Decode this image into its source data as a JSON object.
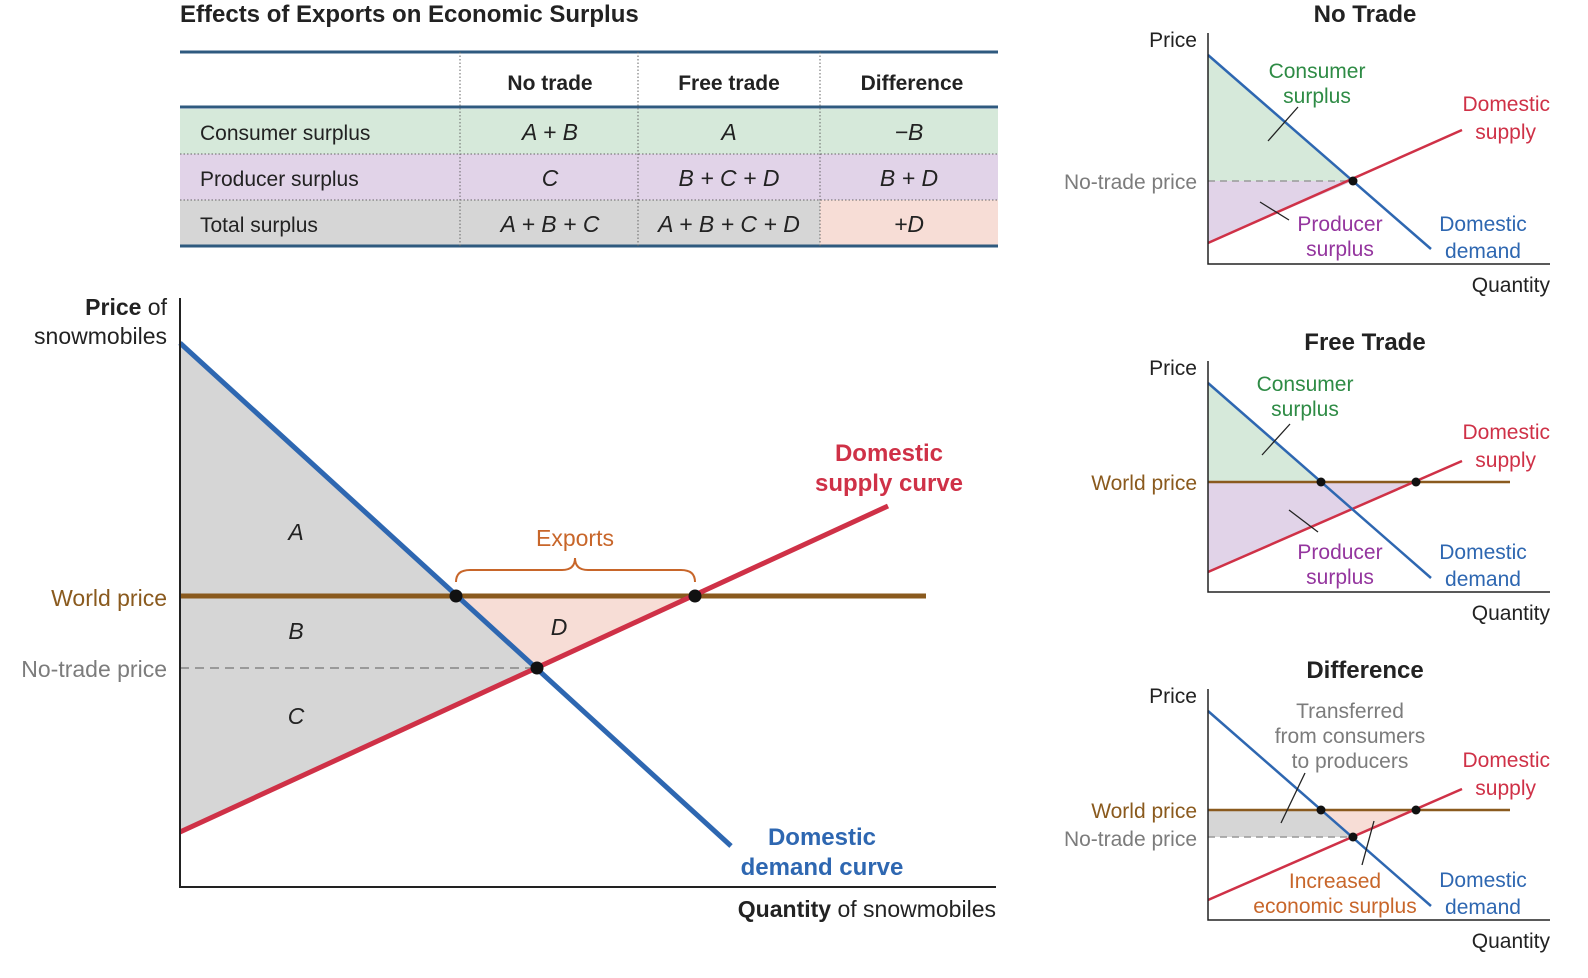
{
  "table": {
    "title": "Effects of Exports on Economic Surplus",
    "columns": [
      "",
      "No trade",
      "Free trade",
      "Difference"
    ],
    "rows": [
      {
        "label": "Consumer surplus",
        "cells": [
          "A + B",
          "A",
          "−B"
        ]
      },
      {
        "label": "Producer surplus",
        "cells": [
          "C",
          "B + C + D",
          "B + D"
        ]
      },
      {
        "label": "Total surplus",
        "cells": [
          "A + B + C",
          "A + B + C + D",
          "+D"
        ]
      }
    ]
  },
  "main": {
    "y_label_bold": "Price",
    "y_label_rest": " of",
    "y_label_line2": "snowmobiles",
    "x_label_bold": "Quantity",
    "x_label_rest": " of snowmobiles",
    "world_price": "World price",
    "no_trade_price": "No-trade price",
    "supply_label": [
      "Domestic",
      "supply curve"
    ],
    "demand_label": [
      "Domestic",
      "demand curve"
    ],
    "exports": "Exports",
    "areas": [
      "A",
      "B",
      "C",
      "D"
    ]
  },
  "panels": [
    {
      "title": "No Trade",
      "price": "Price",
      "quantity": "Quantity",
      "price_line": "No-trade price",
      "consumer": [
        "Consumer",
        "surplus"
      ],
      "producer": [
        "Producer",
        "surplus"
      ],
      "supply": [
        "Domestic",
        "supply"
      ],
      "demand": [
        "Domestic",
        "demand"
      ]
    },
    {
      "title": "Free Trade",
      "price": "Price",
      "quantity": "Quantity",
      "price_line": "World price",
      "consumer": [
        "Consumer",
        "surplus"
      ],
      "producer": [
        "Producer",
        "surplus"
      ],
      "supply": [
        "Domestic",
        "supply"
      ],
      "demand": [
        "Domestic",
        "demand"
      ]
    },
    {
      "title": "Difference",
      "price": "Price",
      "quantity": "Quantity",
      "world_price": "World price",
      "no_trade_price": "No-trade price",
      "transferred": [
        "Transferred",
        "from consumers",
        "to producers"
      ],
      "increased": [
        "Increased",
        "economic surplus"
      ],
      "supply": [
        "Domestic",
        "supply"
      ],
      "demand": [
        "Domestic",
        "demand"
      ]
    }
  ],
  "colors": {
    "demand": "#2e67b1",
    "supply": "#cf3147",
    "world": "#8a5a1e",
    "consumer": "#d6e9da",
    "producer": "#e1d3e8",
    "total": "#d6d6d6",
    "difference_cell": "#f7ddd6",
    "exports": "#c8662a",
    "consumer_text": "#2e8b45",
    "producer_text": "#94359e",
    "gray_text": "#7c7c7c",
    "rule": "#2f5a7f"
  }
}
